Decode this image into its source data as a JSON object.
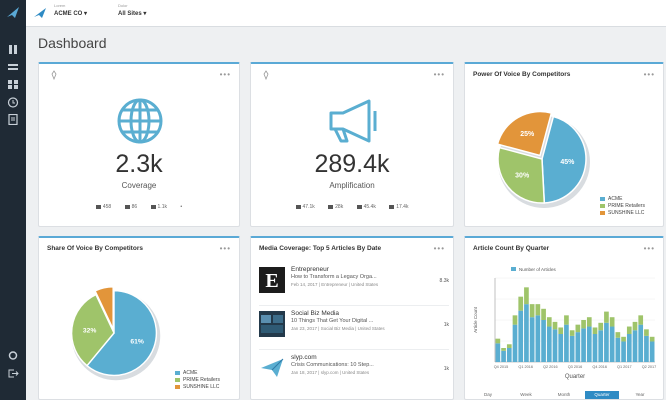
{
  "app": {
    "selector_1": {
      "caption": "Lorem",
      "value": "ACME CO ▾"
    },
    "selector_2": {
      "caption": "Dolor",
      "value": "All Sites ▾"
    },
    "page_title": "Dashboard",
    "menu_glyph": "•••",
    "accent": "#5aa9d6"
  },
  "coverage": {
    "value": "2.3k",
    "label": "Coverage",
    "stats": [
      "458",
      "86",
      "1.1k",
      "•"
    ]
  },
  "amplification": {
    "value": "289.4k",
    "label": "Amplification",
    "stats": [
      "47.1k",
      "28k",
      "45.4k",
      "17.4k"
    ]
  },
  "power_of_voice": {
    "title": "Power Of Voice By Competitors",
    "legend": [
      "ACME",
      "PRIME Retailers",
      "SUNSHINE LLC"
    ]
  },
  "share_of_voice": {
    "title": "Share Of Voice By Competitors",
    "legend": [
      "ACME",
      "PRIME Retailers",
      "SUNSHINE LLC"
    ]
  },
  "media_coverage": {
    "title": "Media Coverage: Top 5 Articles By Date",
    "articles": [
      {
        "source": "Entrepreneur",
        "headline": "How to Transform a Legacy Orga...",
        "meta": "Feb 14, 2017 | Entrepreneur | United States",
        "count": "8.3k"
      },
      {
        "source": "Social Biz Media",
        "headline": "10 Things That Get Your Digital ...",
        "meta": "Jan 23, 2017 | Social Biz Media | United States",
        "count": "1k"
      },
      {
        "source": "slyp.com",
        "headline": "Crisis Communications: 10 Step...",
        "meta": "Jan 18, 2017 | slyp.com | United States",
        "count": "1k"
      }
    ]
  },
  "article_count": {
    "title": "Article Count By Quarter",
    "tabs": [
      "Day",
      "Week",
      "Month",
      "Quarter",
      "Year"
    ],
    "active_tab": "Quarter"
  },
  "chart_data": [
    {
      "type": "pie",
      "title": "Power Of Voice By Competitors",
      "labels": [
        "ACME",
        "PRIME Retailers",
        "SUNSHINE LLC"
      ],
      "values": [
        45,
        30,
        25
      ],
      "slice_labels": [
        "45%",
        "30%",
        "25%"
      ],
      "colors": [
        "#5aaed1",
        "#9fc46a",
        "#e2953a"
      ]
    },
    {
      "type": "pie",
      "title": "Share Of Voice By Competitors",
      "labels": [
        "ACME",
        "PRIME Retailers",
        "SUNSHINE LLC"
      ],
      "values": [
        61,
        32,
        7
      ],
      "slice_labels": [
        "61%",
        "32%",
        ""
      ],
      "colors": [
        "#5aaed1",
        "#9fc46a",
        "#e2953a"
      ]
    },
    {
      "type": "bar",
      "title": "Article Count By Quarter",
      "xlabel": "Quarter",
      "ylabel": "Article Count",
      "legend": [
        "Number of Articles"
      ],
      "categories": [
        "Q1 2015",
        "Q2 2015",
        "Q3 2015",
        "Q4 2015",
        "Q1 2016",
        "Q2 2016",
        "Q3 2016",
        "Q4 2016",
        "Q1 2017",
        "Q2 2017",
        "Q3 2017",
        "Q4 2017",
        "Q1 2018",
        "Q2 2018",
        "Q3 2018",
        "Q4 2018",
        "Q1 2019",
        "Q2 2019",
        "Q3 2019",
        "Q4 2019",
        "Q1 2020",
        "Q2 2020",
        "Q3 2020",
        "Q4 2020",
        "Q1 2021",
        "Q2 2021",
        "Q3 2021",
        "Q4 2021"
      ],
      "tick_labels": [
        "Q4 2015",
        "Q1 2016",
        "Q2 2016",
        "Q3 2016",
        "Q4 2016",
        "Q1 2017",
        "Q2 2017"
      ],
      "series": [
        {
          "name": "Number of Articles",
          "color": "#5aaed1",
          "values": [
            20,
            12,
            15,
            40,
            55,
            62,
            48,
            50,
            45,
            38,
            35,
            30,
            40,
            28,
            32,
            36,
            38,
            30,
            34,
            42,
            38,
            26,
            22,
            30,
            34,
            40,
            28,
            22
          ]
        },
        {
          "name": "",
          "color": "#9fc46a",
          "values": [
            5,
            3,
            4,
            10,
            15,
            18,
            14,
            12,
            12,
            10,
            8,
            7,
            10,
            6,
            8,
            9,
            10,
            7,
            8,
            12,
            10,
            6,
            5,
            8,
            9,
            10,
            7,
            5
          ]
        }
      ],
      "ylim": [
        0,
        90
      ]
    }
  ]
}
